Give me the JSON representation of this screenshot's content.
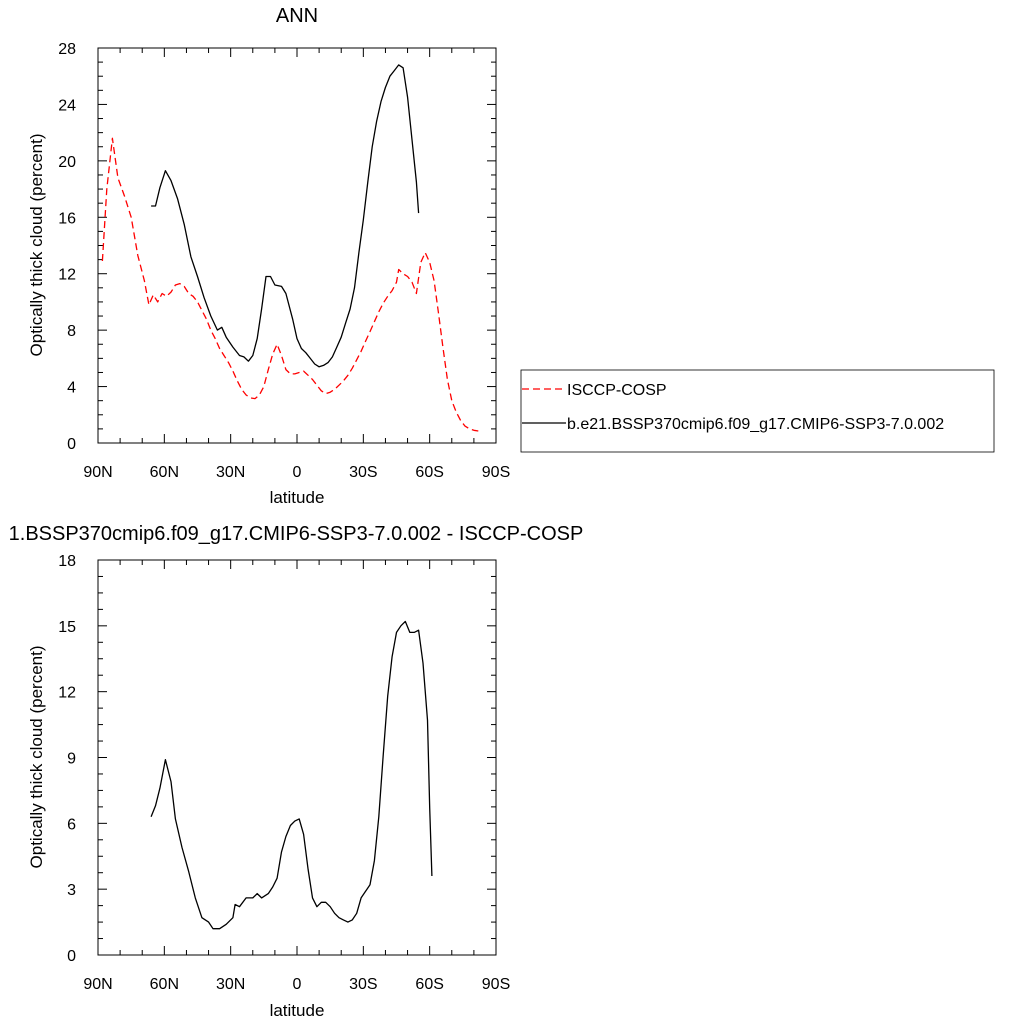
{
  "chart_data": [
    {
      "type": "line",
      "title": "ANN",
      "xlabel": "latitude",
      "ylabel": "Optically thick cloud (percent)",
      "xlim": [
        90,
        -90
      ],
      "ylim": [
        0,
        28
      ],
      "x_ticks": [
        {
          "value": 90,
          "label": "90N"
        },
        {
          "value": 60,
          "label": "60N"
        },
        {
          "value": 30,
          "label": "30N"
        },
        {
          "value": 0,
          "label": "0"
        },
        {
          "value": -30,
          "label": "30S"
        },
        {
          "value": -60,
          "label": "60S"
        },
        {
          "value": -90,
          "label": "90S"
        }
      ],
      "y_ticks": [
        {
          "value": 0,
          "label": "0"
        },
        {
          "value": 4,
          "label": "4"
        },
        {
          "value": 8,
          "label": "8"
        },
        {
          "value": 12,
          "label": "12"
        },
        {
          "value": 16,
          "label": "16"
        },
        {
          "value": 20,
          "label": "20"
        },
        {
          "value": 24,
          "label": "24"
        },
        {
          "value": 28,
          "label": "28"
        }
      ],
      "legend_position": "outside-right",
      "series": [
        {
          "name": "ISCCP-COSP",
          "color": "#ff0000",
          "dash": "dashed",
          "points": [
            [
              88,
              12.9
            ],
            [
              86,
              18.0
            ],
            [
              83.5,
              21.6
            ],
            [
              81,
              18.8
            ],
            [
              78,
              17.5
            ],
            [
              75,
              16.0
            ],
            [
              72,
              13.3
            ],
            [
              69,
              11.5
            ],
            [
              67,
              9.8
            ],
            [
              65,
              10.5
            ],
            [
              63,
              10.0
            ],
            [
              61,
              10.6
            ],
            [
              59,
              10.4
            ],
            [
              57,
              10.7
            ],
            [
              55,
              11.2
            ],
            [
              53,
              11.3
            ],
            [
              51,
              11.1
            ],
            [
              49,
              10.6
            ],
            [
              47,
              10.4
            ],
            [
              45,
              10.0
            ],
            [
              43,
              9.4
            ],
            [
              41,
              8.8
            ],
            [
              39,
              8.0
            ],
            [
              37,
              7.4
            ],
            [
              35,
              6.7
            ],
            [
              33,
              6.2
            ],
            [
              31,
              5.7
            ],
            [
              29,
              5.1
            ],
            [
              27,
              4.4
            ],
            [
              25,
              3.8
            ],
            [
              23,
              3.4
            ],
            [
              21,
              3.2
            ],
            [
              19,
              3.15
            ],
            [
              17,
              3.4
            ],
            [
              15,
              4.0
            ],
            [
              13,
              5.2
            ],
            [
              11,
              6.3
            ],
            [
              9,
              7.0
            ],
            [
              7,
              6.2
            ],
            [
              5,
              5.2
            ],
            [
              3,
              4.9
            ],
            [
              1,
              4.9
            ],
            [
              -1,
              5.0
            ],
            [
              -3,
              5.1
            ],
            [
              -5,
              4.8
            ],
            [
              -7,
              4.5
            ],
            [
              -9,
              4.1
            ],
            [
              -11,
              3.7
            ],
            [
              -13,
              3.5
            ],
            [
              -15,
              3.6
            ],
            [
              -17,
              3.8
            ],
            [
              -19,
              4.1
            ],
            [
              -21,
              4.4
            ],
            [
              -23,
              4.8
            ],
            [
              -25,
              5.3
            ],
            [
              -27,
              5.9
            ],
            [
              -29,
              6.5
            ],
            [
              -31,
              7.2
            ],
            [
              -33,
              7.9
            ],
            [
              -35,
              8.6
            ],
            [
              -37,
              9.3
            ],
            [
              -39,
              9.9
            ],
            [
              -41,
              10.4
            ],
            [
              -43,
              10.8
            ],
            [
              -45,
              11.4
            ],
            [
              -46,
              12.3
            ],
            [
              -48,
              12.0
            ],
            [
              -50,
              11.8
            ],
            [
              -52,
              11.4
            ],
            [
              -54,
              10.6
            ],
            [
              -56,
              12.8
            ],
            [
              -58,
              13.5
            ],
            [
              -60,
              12.8
            ],
            [
              -62,
              11.5
            ],
            [
              -64,
              9.2
            ],
            [
              -66,
              6.8
            ],
            [
              -68,
              4.5
            ],
            [
              -70,
              3.0
            ],
            [
              -72,
              2.2
            ],
            [
              -74,
              1.6
            ],
            [
              -76,
              1.2
            ],
            [
              -78,
              1.0
            ],
            [
              -80,
              0.9
            ],
            [
              -82,
              0.85
            ]
          ]
        },
        {
          "name": "b.e21.BSSP370cmip6.f09_g17.CMIP6-SSP3-7.0.002",
          "color": "#000000",
          "dash": "solid",
          "points": [
            [
              66,
              16.8
            ],
            [
              64,
              16.8
            ],
            [
              62,
              18.1
            ],
            [
              59.5,
              19.3
            ],
            [
              57,
              18.6
            ],
            [
              54,
              17.3
            ],
            [
              51,
              15.5
            ],
            [
              48,
              13.2
            ],
            [
              45,
              11.8
            ],
            [
              42,
              10.3
            ],
            [
              39,
              9.0
            ],
            [
              36,
              8.0
            ],
            [
              34,
              8.2
            ],
            [
              32,
              7.5
            ],
            [
              29,
              6.8
            ],
            [
              26,
              6.2
            ],
            [
              24,
              6.1
            ],
            [
              22,
              5.8
            ],
            [
              20,
              6.2
            ],
            [
              18,
              7.4
            ],
            [
              16,
              9.5
            ],
            [
              14,
              11.8
            ],
            [
              12,
              11.8
            ],
            [
              10,
              11.2
            ],
            [
              7,
              11.1
            ],
            [
              5,
              10.6
            ],
            [
              2,
              8.8
            ],
            [
              0,
              7.4
            ],
            [
              -2,
              6.7
            ],
            [
              -4,
              6.4
            ],
            [
              -6,
              6.0
            ],
            [
              -8,
              5.6
            ],
            [
              -10,
              5.4
            ],
            [
              -12,
              5.5
            ],
            [
              -14,
              5.7
            ],
            [
              -16,
              6.1
            ],
            [
              -18,
              6.8
            ],
            [
              -20,
              7.5
            ],
            [
              -22,
              8.5
            ],
            [
              -24,
              9.5
            ],
            [
              -26,
              11.0
            ],
            [
              -28,
              13.5
            ],
            [
              -30,
              15.8
            ],
            [
              -32,
              18.5
            ],
            [
              -34,
              21.0
            ],
            [
              -36,
              22.8
            ],
            [
              -38,
              24.2
            ],
            [
              -40,
              25.2
            ],
            [
              -42,
              26.0
            ],
            [
              -44,
              26.4
            ],
            [
              -46,
              26.8
            ],
            [
              -48,
              26.6
            ],
            [
              -50,
              24.5
            ],
            [
              -52,
              21.5
            ],
            [
              -54,
              18.5
            ],
            [
              -55,
              16.3
            ]
          ]
        }
      ]
    },
    {
      "type": "line",
      "title": "1.BSSP370cmip6.f09_g17.CMIP6-SSP3-7.0.002 - ISCCP-COSP",
      "xlabel": "latitude",
      "ylabel": "Optically thick cloud (percent)",
      "xlim": [
        90,
        -90
      ],
      "ylim": [
        0,
        18
      ],
      "x_ticks": [
        {
          "value": 90,
          "label": "90N"
        },
        {
          "value": 60,
          "label": "60N"
        },
        {
          "value": 30,
          "label": "30N"
        },
        {
          "value": 0,
          "label": "0"
        },
        {
          "value": -30,
          "label": "30S"
        },
        {
          "value": -60,
          "label": "60S"
        },
        {
          "value": -90,
          "label": "90S"
        }
      ],
      "y_ticks": [
        {
          "value": 0,
          "label": "0"
        },
        {
          "value": 3,
          "label": "3"
        },
        {
          "value": 6,
          "label": "6"
        },
        {
          "value": 9,
          "label": "9"
        },
        {
          "value": 12,
          "label": "12"
        },
        {
          "value": 15,
          "label": "15"
        },
        {
          "value": 18,
          "label": "18"
        }
      ],
      "series": [
        {
          "color": "#000000",
          "dash": "solid",
          "points": [
            [
              66,
              6.3
            ],
            [
              64,
              6.8
            ],
            [
              62,
              7.6
            ],
            [
              59.5,
              8.9
            ],
            [
              57,
              7.9
            ],
            [
              55,
              6.2
            ],
            [
              52,
              4.9
            ],
            [
              49,
              3.8
            ],
            [
              46,
              2.6
            ],
            [
              43,
              1.7
            ],
            [
              40,
              1.5
            ],
            [
              38,
              1.2
            ],
            [
              35,
              1.2
            ],
            [
              32,
              1.4
            ],
            [
              29,
              1.7
            ],
            [
              28,
              2.3
            ],
            [
              26,
              2.2
            ],
            [
              23,
              2.6
            ],
            [
              20,
              2.6
            ],
            [
              18,
              2.8
            ],
            [
              16,
              2.6
            ],
            [
              13,
              2.8
            ],
            [
              11,
              3.1
            ],
            [
              9,
              3.5
            ],
            [
              7,
              4.7
            ],
            [
              5,
              5.4
            ],
            [
              3,
              5.9
            ],
            [
              1,
              6.1
            ],
            [
              -1,
              6.2
            ],
            [
              -3,
              5.5
            ],
            [
              -5,
              3.9
            ],
            [
              -7,
              2.6
            ],
            [
              -9,
              2.2
            ],
            [
              -11,
              2.4
            ],
            [
              -13,
              2.4
            ],
            [
              -15,
              2.2
            ],
            [
              -17,
              1.9
            ],
            [
              -19,
              1.7
            ],
            [
              -21,
              1.6
            ],
            [
              -23,
              1.5
            ],
            [
              -25,
              1.6
            ],
            [
              -27,
              1.9
            ],
            [
              -29,
              2.6
            ],
            [
              -31,
              2.9
            ],
            [
              -33,
              3.2
            ],
            [
              -35,
              4.3
            ],
            [
              -37,
              6.3
            ],
            [
              -39,
              9.1
            ],
            [
              -41,
              11.8
            ],
            [
              -43,
              13.6
            ],
            [
              -45,
              14.7
            ],
            [
              -47,
              15.0
            ],
            [
              -49,
              15.2
            ],
            [
              -51,
              14.7
            ],
            [
              -53,
              14.7
            ],
            [
              -55,
              14.8
            ],
            [
              -57,
              13.3
            ],
            [
              -59,
              10.7
            ],
            [
              -60,
              6.7
            ],
            [
              -61,
              3.6
            ]
          ]
        }
      ]
    }
  ]
}
